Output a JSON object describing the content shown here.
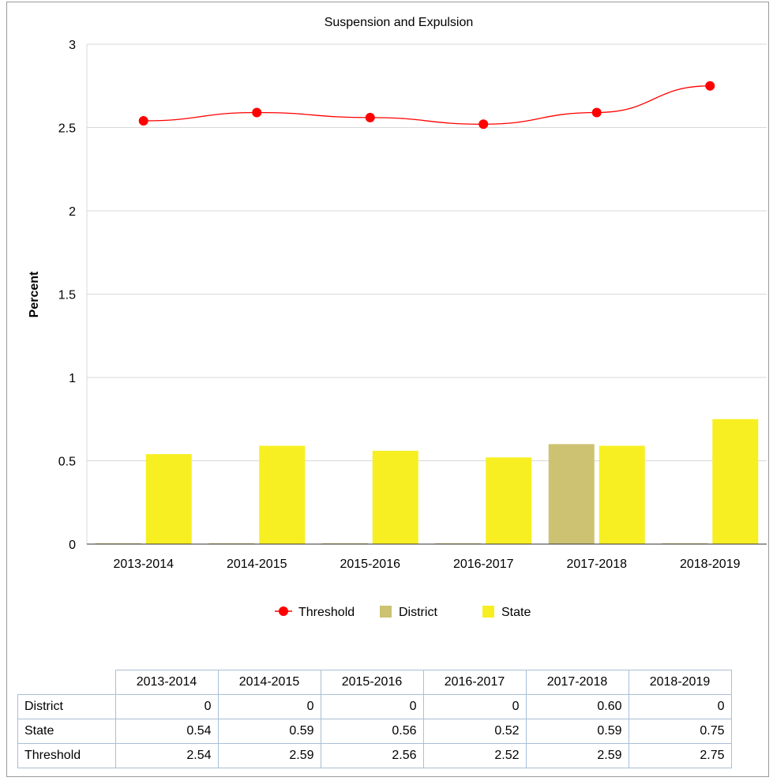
{
  "chart_data": {
    "type": "bar",
    "title": "Suspension and Expulsion",
    "ylabel": "Percent",
    "xlabel": "",
    "categories": [
      "2013-2014",
      "2014-2015",
      "2015-2016",
      "2016-2017",
      "2017-2018",
      "2018-2019"
    ],
    "ylim": [
      0,
      3
    ],
    "yticks": [
      "0",
      "0.5",
      "1",
      "1.5",
      "2",
      "2.5",
      "3"
    ],
    "ytick_values": [
      0,
      0.5,
      1,
      1.5,
      2,
      2.5,
      3
    ],
    "grid": true,
    "legend_position": "bottom",
    "series": [
      {
        "name": "District",
        "type": "bar",
        "color": "#ccc271",
        "values": [
          0,
          0,
          0,
          0,
          0.6,
          0
        ]
      },
      {
        "name": "State",
        "type": "bar",
        "color": "#f7ef22",
        "values": [
          0.54,
          0.59,
          0.56,
          0.52,
          0.59,
          0.75
        ]
      },
      {
        "name": "Threshold",
        "type": "line",
        "color": "#ff0000",
        "marker": "circle",
        "values": [
          2.54,
          2.59,
          2.56,
          2.52,
          2.59,
          2.75
        ]
      }
    ]
  },
  "legend": {
    "items": [
      {
        "label": "Threshold",
        "color": "#ff0000",
        "icon": "line-dot-icon"
      },
      {
        "label": "District",
        "color": "#ccc271",
        "icon": "square-icon"
      },
      {
        "label": "State",
        "color": "#f7ef22",
        "icon": "square-icon"
      }
    ]
  },
  "table": {
    "headers": [
      "2013-2014",
      "2014-2015",
      "2015-2016",
      "2016-2017",
      "2017-2018",
      "2018-2019"
    ],
    "rows": [
      {
        "label": "District",
        "values": [
          "0",
          "0",
          "0",
          "0",
          "0.60",
          "0"
        ]
      },
      {
        "label": "State",
        "values": [
          "0.54",
          "0.59",
          "0.56",
          "0.52",
          "0.59",
          "0.75"
        ]
      },
      {
        "label": "Threshold",
        "values": [
          "2.54",
          "2.59",
          "2.56",
          "2.52",
          "2.59",
          "2.75"
        ]
      }
    ]
  }
}
